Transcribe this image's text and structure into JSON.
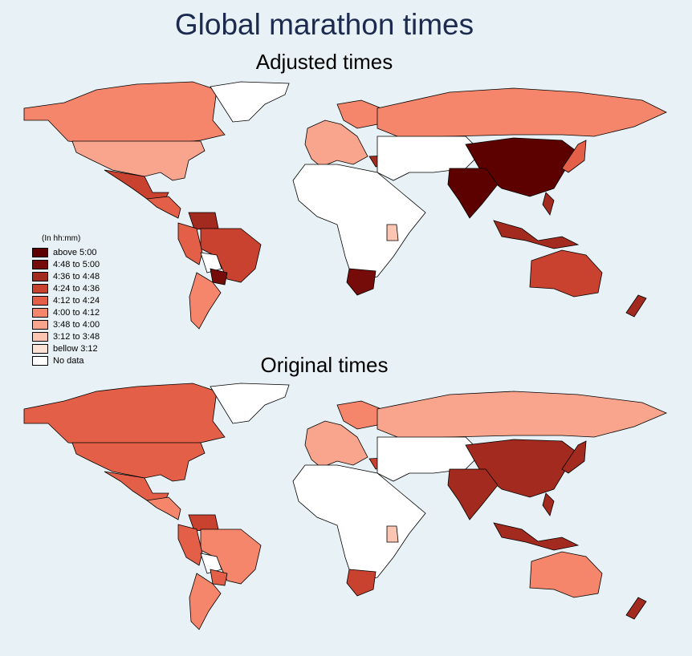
{
  "title": "Global marathon times",
  "maps": [
    {
      "subtitle": "Adjusted times"
    },
    {
      "subtitle": "Original times"
    }
  ],
  "legend": {
    "title": "(In hh:mm)",
    "items": [
      {
        "label": "above 5:00",
        "color": "#5c0000"
      },
      {
        "label": "4:48 to 5:00",
        "color": "#760c09"
      },
      {
        "label": "4:36 to 4:48",
        "color": "#a32a1e"
      },
      {
        "label": "4:24 to 4:36",
        "color": "#c9412f"
      },
      {
        "label": "4:12 to 4:24",
        "color": "#e35f47"
      },
      {
        "label": "4:00 to 4:12",
        "color": "#f5866b"
      },
      {
        "label": "3:48 to 4:00",
        "color": "#f9a58d"
      },
      {
        "label": "3:12 to 3:48",
        "color": "#fcc5b1"
      },
      {
        "label": "bellow 3:12",
        "color": "#fde2d6"
      },
      {
        "label": "No data",
        "color": "#ffffff"
      }
    ]
  }
}
